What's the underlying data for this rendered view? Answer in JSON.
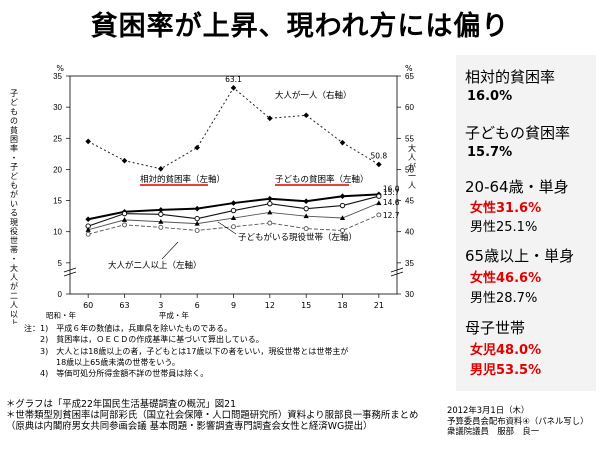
{
  "title": "貧困率が上昇、現われ方には偏り",
  "chart_data": {
    "type": "line",
    "x_tick_labels": [
      "60",
      "63",
      "3",
      "6",
      "9",
      "12",
      "15",
      "18",
      "21"
    ],
    "x_era_labels": {
      "showa": "昭和・年",
      "heisei": "平成・年"
    },
    "left_axis": {
      "unit": "%",
      "ticks": [
        "0",
        "5",
        "10",
        "15",
        "20",
        "25",
        "30",
        "35"
      ],
      "label": "子どもの貧困率・子どもがいる現役世帯・大人が二人以上",
      "ylim": [
        0,
        35
      ]
    },
    "right_axis": {
      "unit": "%",
      "ticks": [
        "30",
        "35",
        "40",
        "45",
        "50",
        "55",
        "60",
        "65"
      ],
      "label": "大人が一人",
      "ylim": [
        30,
        65
      ]
    },
    "series": [
      {
        "name": "大人が一人(右軸)",
        "axis": "right",
        "style": "dotted",
        "values": [
          54.5,
          51.4,
          50.1,
          53.5,
          63.1,
          58.2,
          58.7,
          54.3,
          50.8
        ],
        "value_labels": {
          "4": "63.1",
          "8": "50.8"
        }
      },
      {
        "name": "相対的貧困率(左軸)",
        "axis": "left",
        "style": "solid-bold",
        "values": [
          12.0,
          13.2,
          13.5,
          13.7,
          14.6,
          15.3,
          14.9,
          15.7,
          16.0
        ],
        "value_labels": {
          "8": "16.0"
        }
      },
      {
        "name": "子どもの貧困率(左軸)",
        "axis": "left",
        "style": "solid",
        "values": [
          10.9,
          12.9,
          12.8,
          12.1,
          13.4,
          14.5,
          13.7,
          14.2,
          15.7
        ],
        "value_labels": {
          "8": "15.7"
        }
      },
      {
        "name": "子どもがいる現役世帯(左軸)",
        "axis": "left",
        "style": "solid-thin",
        "values": [
          10.3,
          11.9,
          11.6,
          11.3,
          12.2,
          13.1,
          12.5,
          12.2,
          14.6
        ],
        "value_labels": {
          "8": "14.6"
        }
      },
      {
        "name": "大人が二人以上(左軸)",
        "axis": "left",
        "style": "dashed",
        "values": [
          9.6,
          11.1,
          10.7,
          10.2,
          10.8,
          11.4,
          10.5,
          10.2,
          12.7
        ],
        "value_labels": {
          "8": "12.7"
        }
      }
    ],
    "annotations": {
      "adult_one": "大人が一人（右軸）",
      "relative": "相対的貧困率（左軸）",
      "child": "子どもの貧困率（左軸）",
      "households": "子どもがいる現役世帯（左軸）",
      "two_adults": "大人が二人以上（左軸）"
    },
    "underline_color": "#e00000"
  },
  "notes": [
    "注：1)　平成６年の数値は，兵庫県を除いたものである。",
    "　　2)　貧困率は，ＯＥＣＤの作成基準に基づいて算出している。",
    "　　3)　大人とは18歳以上の者，子どもとは17歳以下の者をいい，現役世帯とは世帯主が",
    "　　　　18歳以上65歳未満の世帯をいう。",
    "　　4)　等価可処分所得金額不詳の世帯員は除く。"
  ],
  "sources": [
    "＊グラフは「平成22年国民生活基礎調査の概況」図21",
    "＊世帯類型別貧困率は阿部彩氏（国立社会保障・人口問題研究所）資料より服部良一事務所まとめ",
    "（原典は内閣府男女共同参画会議 基本問題・影響調査専門調査会女性と経済WG提出）"
  ],
  "author": {
    "date": "2012年3月1日（木）",
    "line2": "予算委員会配布資料④（パネル写し）",
    "line3": "衆議院議員　服部　良一"
  },
  "panel": {
    "relative_label": "相対的貧困率",
    "relative_value": "16.0%",
    "child_label": "子どもの貧困率",
    "child_value": "15.7%",
    "single2064_label": "20-64歳・単身",
    "single2064_female": "女性31.6%",
    "single2064_male": "男性25.1%",
    "single65_label": "65歳以上・単身",
    "single65_female": "女性46.6%",
    "single65_male": "男性28.7%",
    "mother_label": "母子世帯",
    "mother_girl": "女児48.0%",
    "mother_boy": "男児53.5%"
  }
}
